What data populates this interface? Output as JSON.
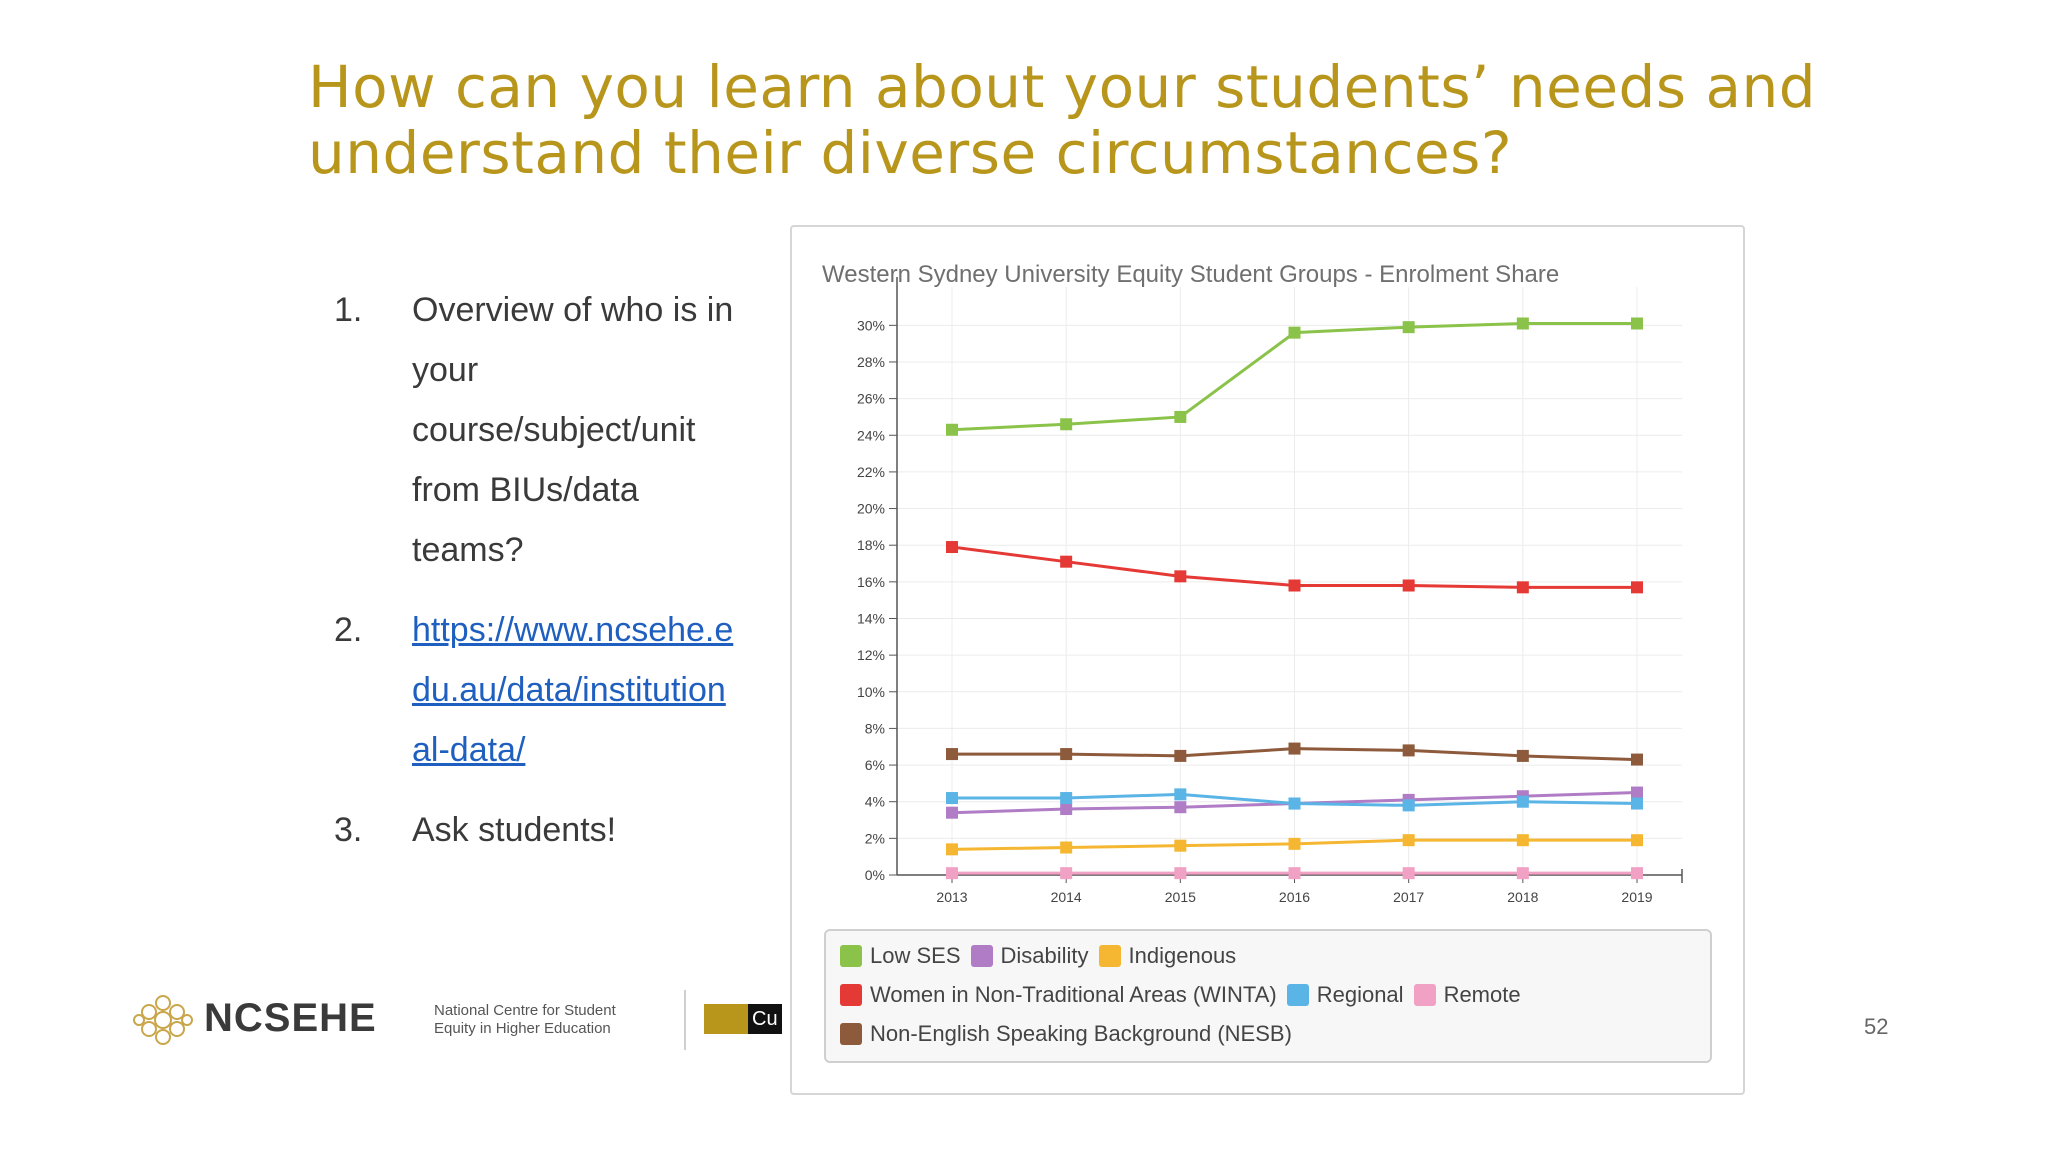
{
  "slide": {
    "title_line1": "How can you learn about your students’ needs and",
    "title_line2": "understand their diverse circumstances?",
    "items": [
      {
        "number": "1.",
        "text": "Overview of who is in your course/subject/unit from BIUs/data teams?"
      },
      {
        "number": "2.",
        "text": "https://www.ncsehe.edu.au/data/institutional-data/"
      },
      {
        "number": "3.",
        "text": "Ask students!"
      }
    ],
    "page_number": "52"
  },
  "footer": {
    "logo_name": "NCSEHE",
    "logo_subtitle_line1": "National Centre for Student",
    "logo_subtitle_line2": "Equity in Higher Education",
    "partner_text": "Cu"
  },
  "chart_data": {
    "type": "line",
    "title": "Western Sydney University Equity Student Groups - Enrolment Share",
    "x": [
      "2013",
      "2014",
      "2015",
      "2016",
      "2017",
      "2018",
      "2019"
    ],
    "ylim": [
      0,
      31
    ],
    "yticks": [
      0,
      2,
      4,
      6,
      8,
      10,
      12,
      14,
      16,
      18,
      20,
      22,
      24,
      26,
      28,
      30
    ],
    "ytick_labels": [
      "0%",
      "2%",
      "4%",
      "6%",
      "8%",
      "10%",
      "12%",
      "14%",
      "16%",
      "18%",
      "20%",
      "22%",
      "24%",
      "26%",
      "28%",
      "30%"
    ],
    "grid": true,
    "series": [
      {
        "name": "Low SES",
        "color": "#8bc34a",
        "values": [
          24.3,
          24.6,
          25.0,
          29.6,
          29.9,
          30.1,
          30.1
        ]
      },
      {
        "name": "Disability",
        "color": "#b07cc6",
        "values": [
          3.4,
          3.6,
          3.7,
          3.9,
          4.1,
          4.3,
          4.5
        ]
      },
      {
        "name": "Indigenous",
        "color": "#f5b731",
        "values": [
          1.4,
          1.5,
          1.6,
          1.7,
          1.9,
          1.9,
          1.9
        ]
      },
      {
        "name": "Women in Non-Traditional Areas (WINTA)",
        "color": "#e53935",
        "values": [
          17.9,
          17.1,
          16.3,
          15.8,
          15.8,
          15.7,
          15.7
        ]
      },
      {
        "name": "Regional",
        "color": "#5ab4e6",
        "values": [
          4.2,
          4.2,
          4.4,
          3.9,
          3.8,
          4.0,
          3.9
        ]
      },
      {
        "name": "Remote",
        "color": "#f1a1c4",
        "values": [
          0.1,
          0.1,
          0.1,
          0.1,
          0.1,
          0.1,
          0.1
        ]
      },
      {
        "name": "Non-English Speaking Background (NESB)",
        "color": "#8d5a3b",
        "values": [
          6.6,
          6.6,
          6.5,
          6.9,
          6.8,
          6.5,
          6.3
        ]
      }
    ],
    "legend_placement": "bottom",
    "legend_rows": [
      [
        "Low SES",
        "Disability",
        "Indigenous"
      ],
      [
        "Women in Non-Traditional Areas (WINTA)",
        "Regional",
        "Remote"
      ],
      [
        "Non-English Speaking Background (NESB)"
      ]
    ]
  }
}
